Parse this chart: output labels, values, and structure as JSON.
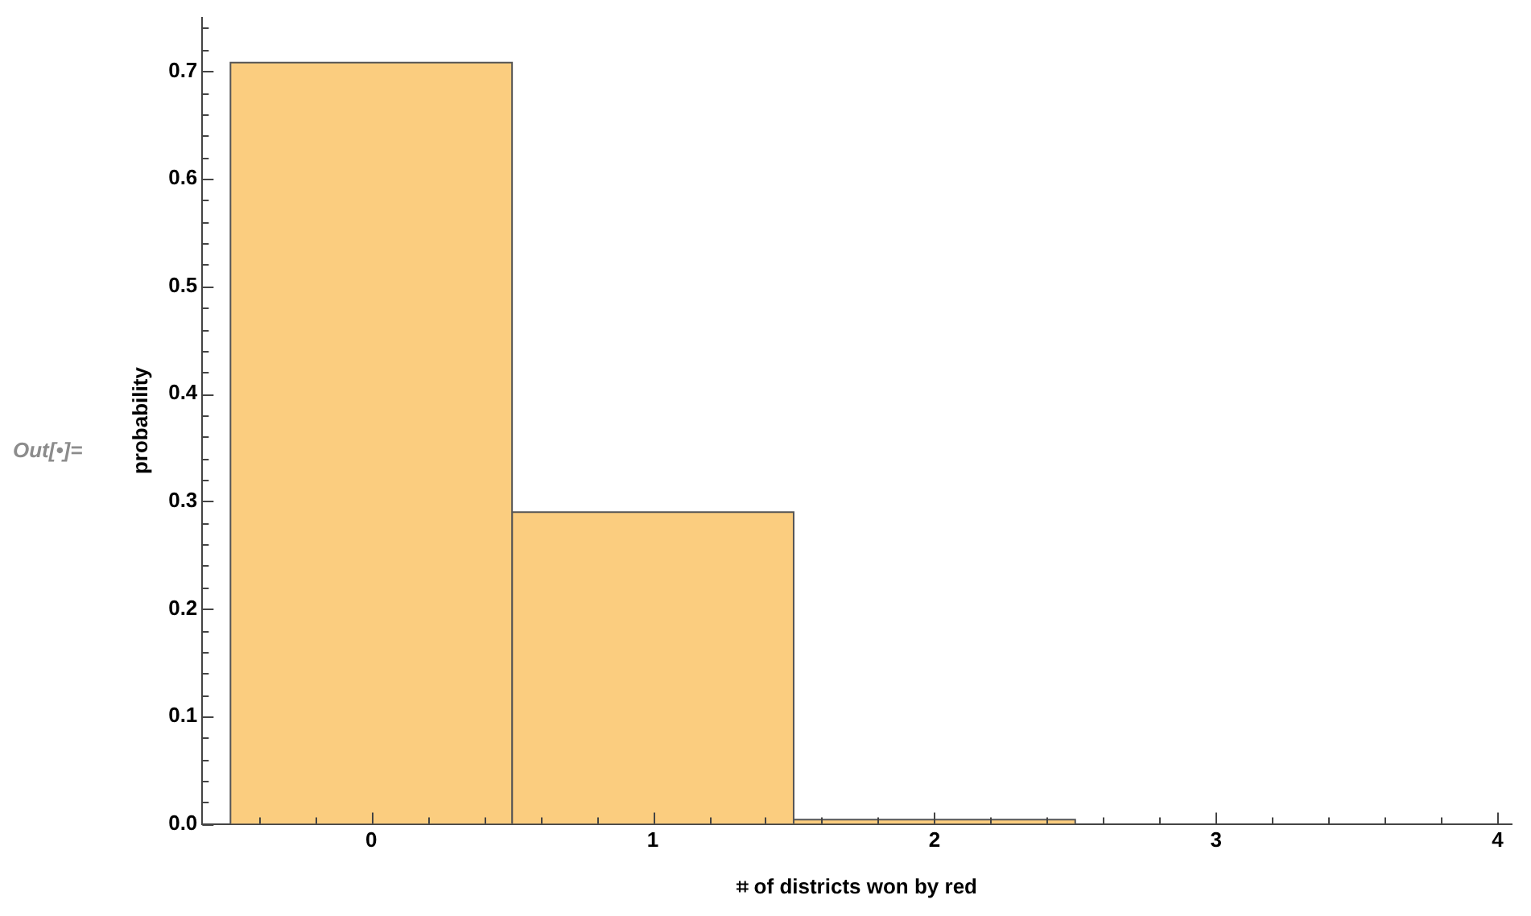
{
  "chart_data": {
    "type": "histogram",
    "xlabel": "⌗ of districts won by red",
    "ylabel": "probability",
    "annotations": [
      "Out[•]="
    ],
    "bins": [
      -0.5,
      0.5,
      1.5,
      2.5
    ],
    "values": [
      0.708,
      0.29,
      0.004
    ],
    "color": "#fbcd7f",
    "xlim": [
      -0.6,
      4.05
    ],
    "xticks": [
      {
        "value": -0.4,
        "label": null
      },
      {
        "value": -0.2,
        "label": null
      },
      0,
      {
        "value": 0.2,
        "label": null
      },
      {
        "value": 0.4,
        "label": null
      },
      {
        "value": 0.6,
        "label": null
      },
      {
        "value": 0.8,
        "label": null
      },
      1,
      {
        "value": 1.2,
        "label": null
      },
      {
        "value": 1.4,
        "label": null
      },
      {
        "value": 1.6,
        "label": null
      },
      {
        "value": 1.8,
        "label": null
      },
      2,
      {
        "value": 2.2,
        "label": null
      },
      {
        "value": 2.4,
        "label": null
      },
      {
        "value": 2.6,
        "label": null
      },
      {
        "value": 2.8,
        "label": null
      },
      3,
      {
        "value": 3.2,
        "label": null
      },
      {
        "value": 3.4,
        "label": null
      },
      {
        "value": 3.6,
        "label": null
      },
      {
        "value": 3.8,
        "label": null
      },
      4
    ],
    "ylim": [
      0,
      0.75
    ],
    "yticks": [
      {
        "value": 0,
        "label": "0.0"
      },
      {
        "value": 0.02,
        "label": null
      },
      {
        "value": 0.04,
        "label": null
      },
      {
        "value": 0.06,
        "label": null
      },
      {
        "value": 0.08,
        "label": null
      },
      0.1,
      {
        "value": 0.12,
        "label": null
      },
      {
        "value": 0.14,
        "label": null
      },
      {
        "value": 0.16,
        "label": null
      },
      {
        "value": 0.18,
        "label": null
      },
      0.2,
      {
        "value": 0.22,
        "label": null
      },
      {
        "value": 0.24,
        "label": null
      },
      {
        "value": 0.26,
        "label": null
      },
      {
        "value": 0.28,
        "label": null
      },
      0.3,
      {
        "value": 0.32,
        "label": null
      },
      {
        "value": 0.34,
        "label": null
      },
      {
        "value": 0.36,
        "label": null
      },
      {
        "value": 0.38,
        "label": null
      },
      0.4,
      {
        "value": 0.42,
        "label": null
      },
      {
        "value": 0.44,
        "label": null
      },
      {
        "value": 0.46,
        "label": null
      },
      {
        "value": 0.48,
        "label": null
      },
      0.5,
      {
        "value": 0.52,
        "label": null
      },
      {
        "value": 0.54,
        "label": null
      },
      {
        "value": 0.56,
        "label": null
      },
      {
        "value": 0.58,
        "label": null
      },
      0.6,
      {
        "value": 0.62,
        "label": null
      },
      {
        "value": 0.64,
        "label": null
      },
      {
        "value": 0.66,
        "label": null
      },
      {
        "value": 0.68,
        "label": null
      },
      0.7,
      {
        "value": 0.72,
        "label": null
      },
      {
        "value": 0.74,
        "label": null
      }
    ],
    "grid": false
  }
}
